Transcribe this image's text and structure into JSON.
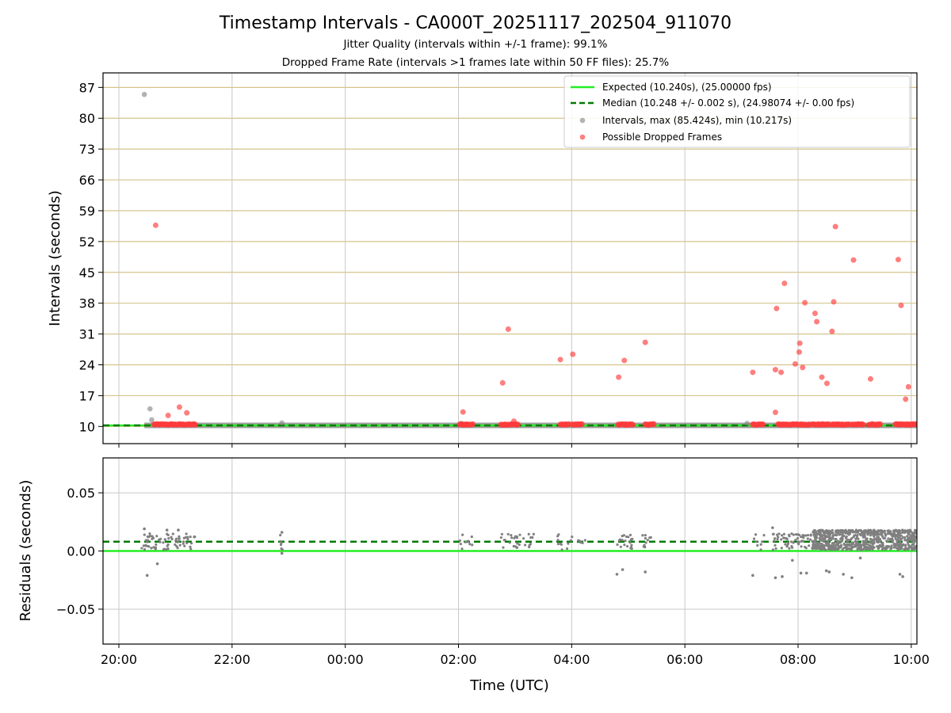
{
  "chart_data": {
    "type": "scatter",
    "title": "Timestamp Intervals - CA000T_20251117_202504_911070",
    "subtitle_1": "Jitter Quality (intervals within +/-1 frame): 99.1%",
    "subtitle_2": "Dropped Frame Rate (intervals >1 frames late within 50 FF files): 25.7%",
    "xlabel": "Time (UTC)",
    "x_hours_range": [
      19.72,
      34.1
    ],
    "x_ticks": [
      {
        "h": 20,
        "label": "20:00"
      },
      {
        "h": 22,
        "label": "22:00"
      },
      {
        "h": 24,
        "label": "00:00"
      },
      {
        "h": 26,
        "label": "02:00"
      },
      {
        "h": 28,
        "label": "04:00"
      },
      {
        "h": 30,
        "label": "06:00"
      },
      {
        "h": 32,
        "label": "08:00"
      },
      {
        "h": 34,
        "label": "10:00"
      }
    ],
    "top_panel": {
      "ylabel": "Intervals (seconds)",
      "ylim": [
        6.1,
        90.3
      ],
      "yticks": [
        10,
        17,
        24,
        31,
        38,
        45,
        52,
        59,
        66,
        73,
        80,
        87
      ],
      "expected_value": 10.24,
      "median_value": 10.248,
      "legend": {
        "expected": "Expected (10.240s), (25.00000 fps)",
        "median": "Median (10.248 +/- 0.002 s), (24.98074 +/- 0.00 fps)",
        "intervals": "Intervals, max (85.424s), min (10.217s)",
        "dropped": "Possible Dropped Frames"
      },
      "intervals_outliers": [
        {
          "t": 20.45,
          "v": 85.4
        },
        {
          "t": 20.55,
          "v": 14.0
        },
        {
          "t": 20.58,
          "v": 11.5
        },
        {
          "t": 22.88,
          "v": 10.8
        },
        {
          "t": 26.05,
          "v": 10.7
        },
        {
          "t": 28.0,
          "v": 10.6
        },
        {
          "t": 31.1,
          "v": 10.7
        },
        {
          "t": 32.2,
          "v": 10.6
        }
      ],
      "dropped_frames": [
        {
          "t": 20.65,
          "v": 55.7
        },
        {
          "t": 20.87,
          "v": 12.5
        },
        {
          "t": 21.07,
          "v": 14.4
        },
        {
          "t": 21.2,
          "v": 13.1
        },
        {
          "t": 26.08,
          "v": 13.3
        },
        {
          "t": 26.78,
          "v": 19.9
        },
        {
          "t": 26.88,
          "v": 32.1
        },
        {
          "t": 26.98,
          "v": 11.2
        },
        {
          "t": 27.8,
          "v": 25.2
        },
        {
          "t": 28.02,
          "v": 26.4
        },
        {
          "t": 28.83,
          "v": 21.2
        },
        {
          "t": 28.93,
          "v": 25.0
        },
        {
          "t": 29.3,
          "v": 29.1
        },
        {
          "t": 31.2,
          "v": 22.3
        },
        {
          "t": 31.6,
          "v": 22.9
        },
        {
          "t": 31.62,
          "v": 36.8
        },
        {
          "t": 31.6,
          "v": 13.2
        },
        {
          "t": 31.7,
          "v": 22.3
        },
        {
          "t": 31.76,
          "v": 42.5
        },
        {
          "t": 31.95,
          "v": 24.2
        },
        {
          "t": 32.03,
          "v": 28.9
        },
        {
          "t": 32.02,
          "v": 26.9
        },
        {
          "t": 32.08,
          "v": 23.4
        },
        {
          "t": 32.12,
          "v": 38.1
        },
        {
          "t": 32.3,
          "v": 35.7
        },
        {
          "t": 32.33,
          "v": 33.8
        },
        {
          "t": 32.42,
          "v": 21.2
        },
        {
          "t": 32.51,
          "v": 19.8
        },
        {
          "t": 32.6,
          "v": 31.6
        },
        {
          "t": 32.63,
          "v": 38.3
        },
        {
          "t": 32.66,
          "v": 55.4
        },
        {
          "t": 32.98,
          "v": 47.8
        },
        {
          "t": 33.28,
          "v": 20.8
        },
        {
          "t": 33.77,
          "v": 47.9
        },
        {
          "t": 33.82,
          "v": 37.5
        },
        {
          "t": 33.9,
          "v": 16.2
        },
        {
          "t": 33.95,
          "v": 19.0
        }
      ],
      "dropped_baseline_clusters": [
        [
          20.62,
          21.35
        ],
        [
          26.02,
          26.25
        ],
        [
          26.75,
          27.05
        ],
        [
          27.8,
          27.95
        ],
        [
          28.02,
          28.18
        ],
        [
          28.82,
          29.08
        ],
        [
          29.3,
          29.45
        ],
        [
          31.2,
          31.38
        ],
        [
          31.65,
          32.2
        ],
        [
          32.25,
          32.55
        ],
        [
          32.6,
          32.9
        ],
        [
          32.95,
          33.15
        ],
        [
          33.25,
          33.45
        ],
        [
          33.72,
          34.1
        ]
      ]
    },
    "bottom_panel": {
      "ylabel": "Residuals (seconds)",
      "ylim": [
        -0.08,
        0.08
      ],
      "yticks": [
        {
          "v": 0.05,
          "label": "0.05"
        },
        {
          "v": 0.0,
          "label": "0.00"
        },
        {
          "v": -0.05,
          "label": "−0.05"
        }
      ],
      "expected_residual": 0.0,
      "median_residual": 0.008,
      "clusters": [
        {
          "start": 20.4,
          "end": 21.35,
          "n": 70
        },
        {
          "start": 22.85,
          "end": 22.9,
          "n": 6
        },
        {
          "start": 26.02,
          "end": 26.25,
          "n": 10
        },
        {
          "start": 26.75,
          "end": 27.35,
          "n": 30
        },
        {
          "start": 27.75,
          "end": 28.25,
          "n": 16
        },
        {
          "start": 28.8,
          "end": 29.1,
          "n": 20
        },
        {
          "start": 29.25,
          "end": 29.4,
          "n": 10
        },
        {
          "start": 31.2,
          "end": 31.4,
          "n": 8
        },
        {
          "start": 31.55,
          "end": 32.25,
          "n": 60
        }
      ],
      "dense_segment": {
        "start": 32.25,
        "end": 34.1,
        "n": 700
      },
      "outliers": [
        {
          "t": 20.45,
          "v": 0.019
        },
        {
          "t": 20.5,
          "v": -0.021
        },
        {
          "t": 20.68,
          "v": -0.011
        },
        {
          "t": 20.85,
          "v": 0.018
        },
        {
          "t": 21.05,
          "v": 0.018
        },
        {
          "t": 22.88,
          "v": 0.016
        },
        {
          "t": 22.88,
          "v": -0.002
        },
        {
          "t": 28.8,
          "v": -0.02
        },
        {
          "t": 28.9,
          "v": -0.016
        },
        {
          "t": 29.3,
          "v": -0.018
        },
        {
          "t": 31.2,
          "v": -0.021
        },
        {
          "t": 31.6,
          "v": -0.023
        },
        {
          "t": 31.72,
          "v": -0.022
        },
        {
          "t": 31.55,
          "v": 0.02
        },
        {
          "t": 31.9,
          "v": -0.008
        },
        {
          "t": 32.05,
          "v": -0.019
        },
        {
          "t": 32.15,
          "v": -0.019
        },
        {
          "t": 32.5,
          "v": -0.017
        },
        {
          "t": 32.55,
          "v": -0.018
        },
        {
          "t": 32.8,
          "v": -0.02
        },
        {
          "t": 32.95,
          "v": -0.023
        },
        {
          "t": 33.1,
          "v": -0.006
        },
        {
          "t": 33.8,
          "v": -0.02
        },
        {
          "t": 33.85,
          "v": -0.022
        }
      ]
    },
    "colors": {
      "expected": "#22ee22",
      "median": "#007a00",
      "intervals": "#808080",
      "dropped": "#ff3b3b",
      "hgrid": "#d4c48a",
      "vgrid": "#c8c8c8"
    }
  }
}
